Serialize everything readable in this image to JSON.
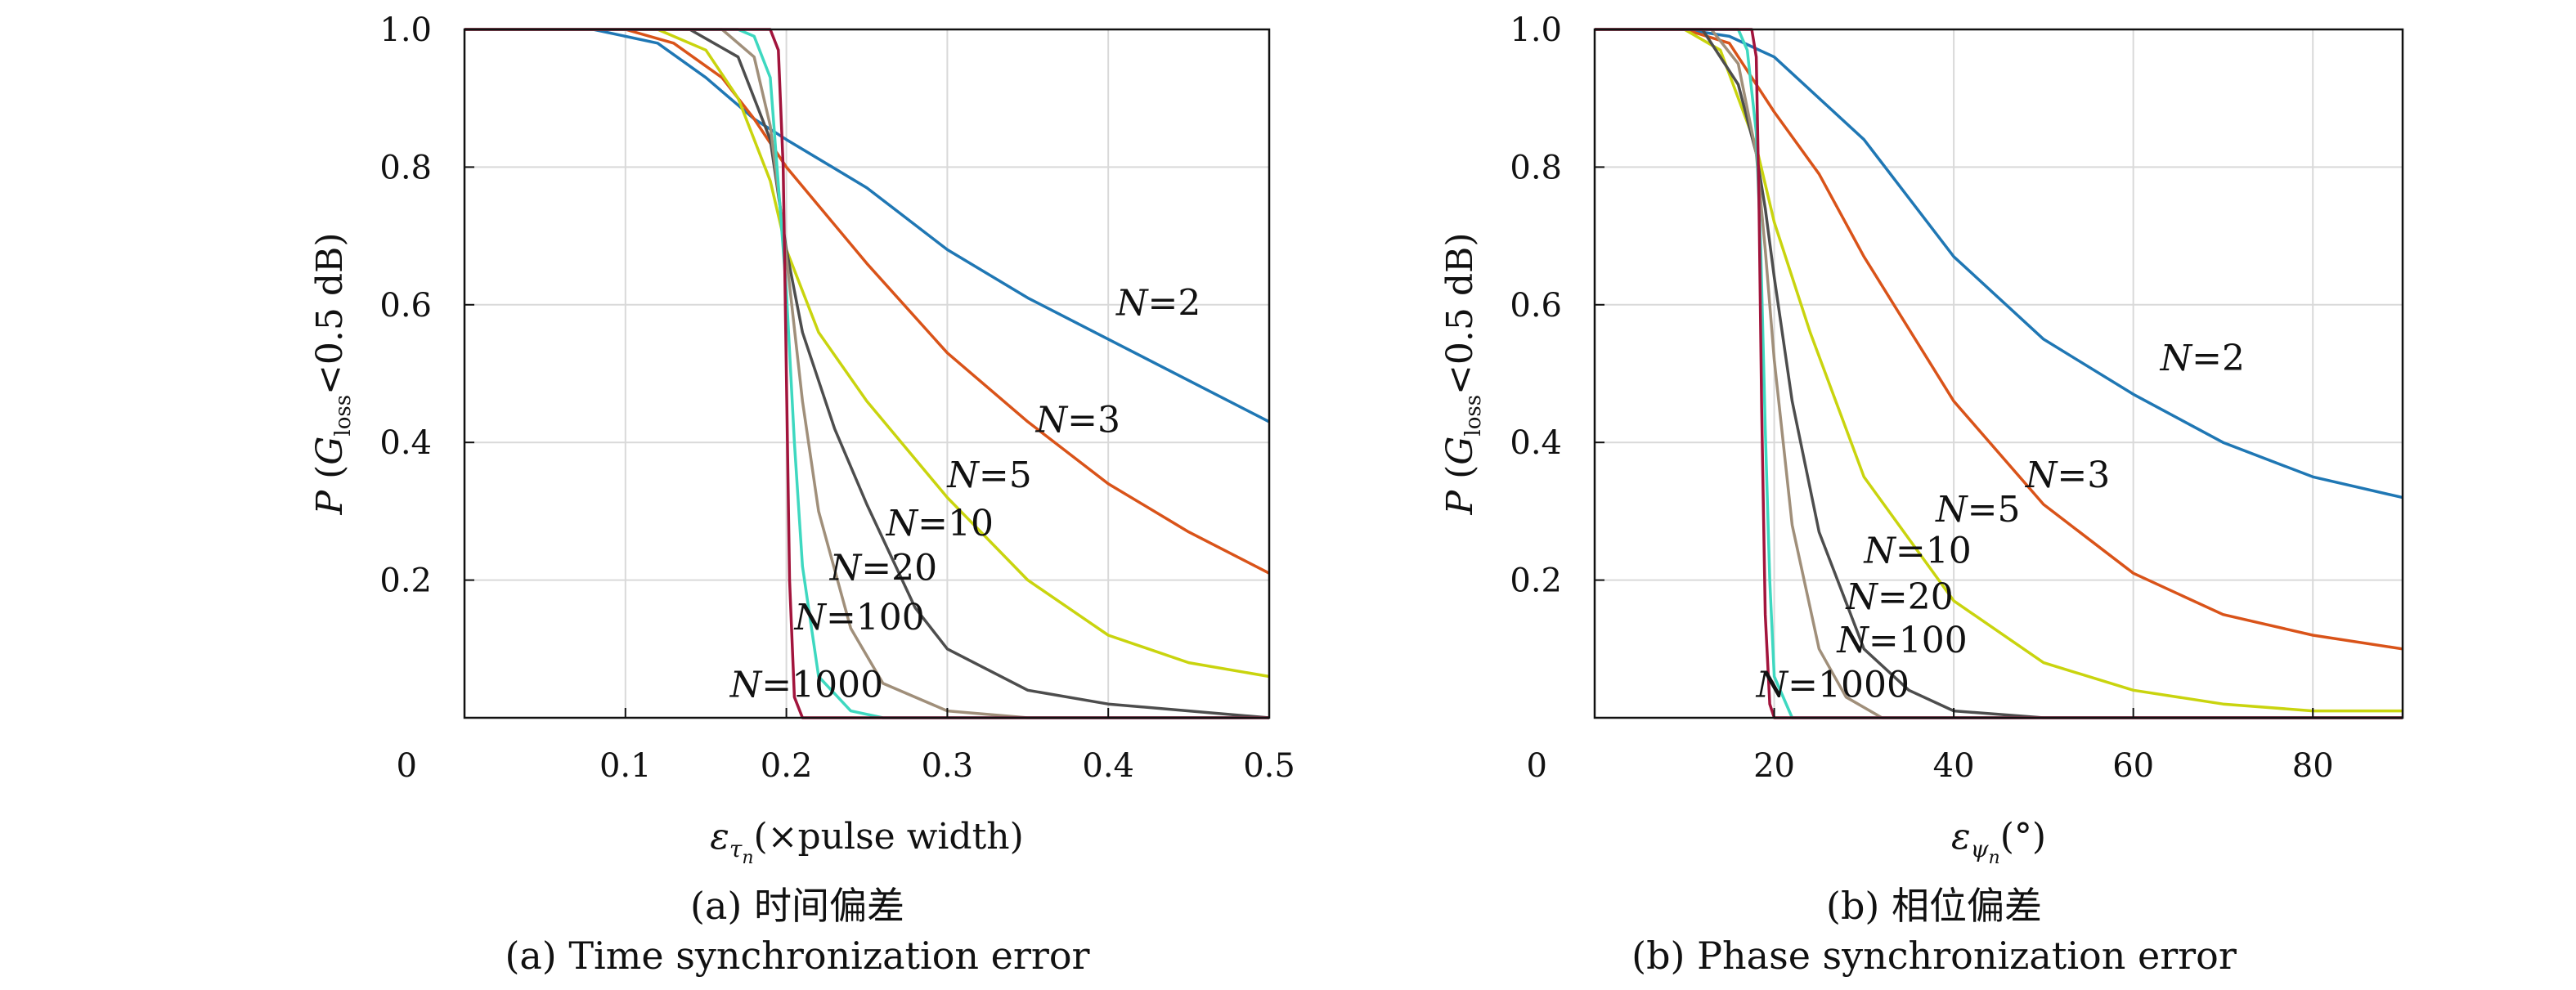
{
  "chart_data": [
    {
      "type": "line",
      "panel_label": "(a)",
      "caption_zh": "(a) 时间偏差",
      "caption_en": "(a) Time synchronization error",
      "xlabel_symbol": "ε",
      "xlabel_subscript": "τ",
      "xlabel_subsub": "n",
      "xlabel_rest": "(×pulse width)",
      "ylabel": "P (G",
      "ylabel_sub": "loss",
      "ylabel_rest": "<0.5 dB)",
      "xlim": [
        0,
        0.5
      ],
      "ylim": [
        0,
        1.0
      ],
      "xticks": [
        "0.1",
        "0.2",
        "0.3",
        "0.4",
        "0.5"
      ],
      "xtick_values": [
        0.1,
        0.2,
        0.3,
        0.4,
        0.5
      ],
      "yticks": [
        "0.2",
        "0.4",
        "0.6",
        "0.8",
        "1.0"
      ],
      "ytick_values": [
        0.2,
        0.4,
        0.6,
        0.8,
        1.0
      ],
      "origin_label": "0",
      "grid": true,
      "series": [
        {
          "name": "N=2",
          "color": "#1f77b4",
          "x": [
            0,
            0.08,
            0.12,
            0.15,
            0.18,
            0.2,
            0.25,
            0.3,
            0.35,
            0.4,
            0.45,
            0.5
          ],
          "y": [
            1.0,
            1.0,
            0.98,
            0.93,
            0.87,
            0.84,
            0.77,
            0.68,
            0.61,
            0.55,
            0.49,
            0.43
          ]
        },
        {
          "name": "N=3",
          "color": "#d95319",
          "x": [
            0,
            0.1,
            0.13,
            0.16,
            0.18,
            0.2,
            0.25,
            0.3,
            0.35,
            0.4,
            0.45,
            0.5
          ],
          "y": [
            1.0,
            1.0,
            0.98,
            0.93,
            0.87,
            0.8,
            0.66,
            0.53,
            0.43,
            0.34,
            0.27,
            0.21
          ]
        },
        {
          "name": "N=5",
          "color": "#c9d40e",
          "x": [
            0,
            0.12,
            0.15,
            0.17,
            0.19,
            0.2,
            0.22,
            0.25,
            0.3,
            0.35,
            0.4,
            0.45,
            0.5
          ],
          "y": [
            1.0,
            1.0,
            0.97,
            0.9,
            0.78,
            0.68,
            0.56,
            0.46,
            0.32,
            0.2,
            0.12,
            0.08,
            0.06
          ]
        },
        {
          "name": "N=10",
          "color": "#4d4d4d",
          "x": [
            0,
            0.14,
            0.17,
            0.19,
            0.2,
            0.21,
            0.23,
            0.25,
            0.28,
            0.3,
            0.35,
            0.4,
            0.45,
            0.5
          ],
          "y": [
            1.0,
            1.0,
            0.96,
            0.84,
            0.68,
            0.56,
            0.42,
            0.31,
            0.16,
            0.1,
            0.04,
            0.02,
            0.01,
            0.0
          ]
        },
        {
          "name": "N=20",
          "color": "#a08f7a",
          "x": [
            0,
            0.16,
            0.18,
            0.19,
            0.2,
            0.21,
            0.22,
            0.24,
            0.26,
            0.3,
            0.35,
            0.5
          ],
          "y": [
            1.0,
            1.0,
            0.96,
            0.86,
            0.67,
            0.46,
            0.3,
            0.13,
            0.05,
            0.01,
            0.0,
            0.0
          ]
        },
        {
          "name": "N=100",
          "color": "#3ed8c0",
          "x": [
            0,
            0.17,
            0.18,
            0.19,
            0.2,
            0.205,
            0.21,
            0.22,
            0.24,
            0.26,
            0.5
          ],
          "y": [
            1.0,
            1.0,
            0.99,
            0.93,
            0.62,
            0.4,
            0.22,
            0.06,
            0.01,
            0.0,
            0.0
          ]
        },
        {
          "name": "N=1000",
          "color": "#a2143c",
          "x": [
            0,
            0.19,
            0.195,
            0.198,
            0.2,
            0.202,
            0.205,
            0.21,
            0.5
          ],
          "y": [
            1.0,
            1.0,
            0.97,
            0.8,
            0.5,
            0.2,
            0.03,
            0.0,
            0.0
          ]
        }
      ],
      "annotations": [
        {
          "text": "N=2"
        },
        {
          "text": "N=3"
        },
        {
          "text": "N=5"
        },
        {
          "text": "N=10"
        },
        {
          "text": "N=20"
        },
        {
          "text": "N=100"
        },
        {
          "text": "N=1000"
        }
      ]
    },
    {
      "type": "line",
      "panel_label": "(b)",
      "caption_zh": "(b) 相位偏差",
      "caption_en": "(b) Phase synchronization error",
      "xlabel_symbol": "ε",
      "xlabel_subscript": "ψ",
      "xlabel_subsub": "n",
      "xlabel_rest": "(°)",
      "ylabel": "P (G",
      "ylabel_sub": "loss",
      "ylabel_rest": "<0.5 dB)",
      "xlim": [
        0,
        90
      ],
      "ylim": [
        0,
        1.0
      ],
      "xticks": [
        "20",
        "40",
        "60",
        "80"
      ],
      "xtick_values": [
        20,
        40,
        60,
        80
      ],
      "yticks": [
        "0.2",
        "0.4",
        "0.6",
        "0.8",
        "1.0"
      ],
      "ytick_values": [
        0.2,
        0.4,
        0.6,
        0.8,
        1.0
      ],
      "origin_label": "0",
      "grid": true,
      "series": [
        {
          "name": "N=2",
          "color": "#1f77b4",
          "x": [
            0,
            10,
            15,
            20,
            30,
            40,
            50,
            60,
            70,
            80,
            90
          ],
          "y": [
            1.0,
            1.0,
            0.99,
            0.96,
            0.84,
            0.67,
            0.55,
            0.47,
            0.4,
            0.35,
            0.32
          ]
        },
        {
          "name": "N=3",
          "color": "#d95319",
          "x": [
            0,
            10,
            15,
            20,
            25,
            30,
            40,
            50,
            60,
            70,
            80,
            90
          ],
          "y": [
            1.0,
            1.0,
            0.98,
            0.88,
            0.79,
            0.67,
            0.46,
            0.31,
            0.21,
            0.15,
            0.12,
            0.1
          ]
        },
        {
          "name": "N=5",
          "color": "#c9d40e",
          "x": [
            0,
            10,
            14,
            18,
            20,
            24,
            30,
            40,
            50,
            60,
            70,
            80,
            90
          ],
          "y": [
            1.0,
            1.0,
            0.97,
            0.83,
            0.72,
            0.56,
            0.35,
            0.17,
            0.08,
            0.04,
            0.02,
            0.01,
            0.01
          ]
        },
        {
          "name": "N=10",
          "color": "#4d4d4d",
          "x": [
            0,
            12,
            16,
            18,
            19,
            20,
            22,
            25,
            30,
            35,
            40,
            50,
            90
          ],
          "y": [
            1.0,
            1.0,
            0.92,
            0.82,
            0.74,
            0.64,
            0.46,
            0.27,
            0.1,
            0.04,
            0.01,
            0.0,
            0.0
          ]
        },
        {
          "name": "N=20",
          "color": "#a08f7a",
          "x": [
            0,
            13,
            16,
            18,
            19,
            20,
            22,
            25,
            28,
            32,
            90
          ],
          "y": [
            1.0,
            1.0,
            0.95,
            0.82,
            0.68,
            0.52,
            0.28,
            0.1,
            0.03,
            0.0,
            0.0
          ]
        },
        {
          "name": "N=100",
          "color": "#3ed8c0",
          "x": [
            0,
            16,
            17,
            18,
            18.5,
            19,
            19.5,
            20,
            22,
            90
          ],
          "y": [
            1.0,
            1.0,
            0.97,
            0.85,
            0.68,
            0.42,
            0.2,
            0.06,
            0.0,
            0.0
          ]
        },
        {
          "name": "N=1000",
          "color": "#a2143c",
          "x": [
            0,
            17.5,
            18,
            18.3,
            18.6,
            19,
            19.5,
            20,
            90
          ],
          "y": [
            1.0,
            1.0,
            0.96,
            0.75,
            0.45,
            0.15,
            0.02,
            0.0,
            0.0
          ]
        }
      ],
      "annotations": [
        {
          "text": "N=2"
        },
        {
          "text": "N=3"
        },
        {
          "text": "N=5"
        },
        {
          "text": "N=10"
        },
        {
          "text": "N=20"
        },
        {
          "text": "N=100"
        },
        {
          "text": "N=1000"
        }
      ]
    }
  ]
}
